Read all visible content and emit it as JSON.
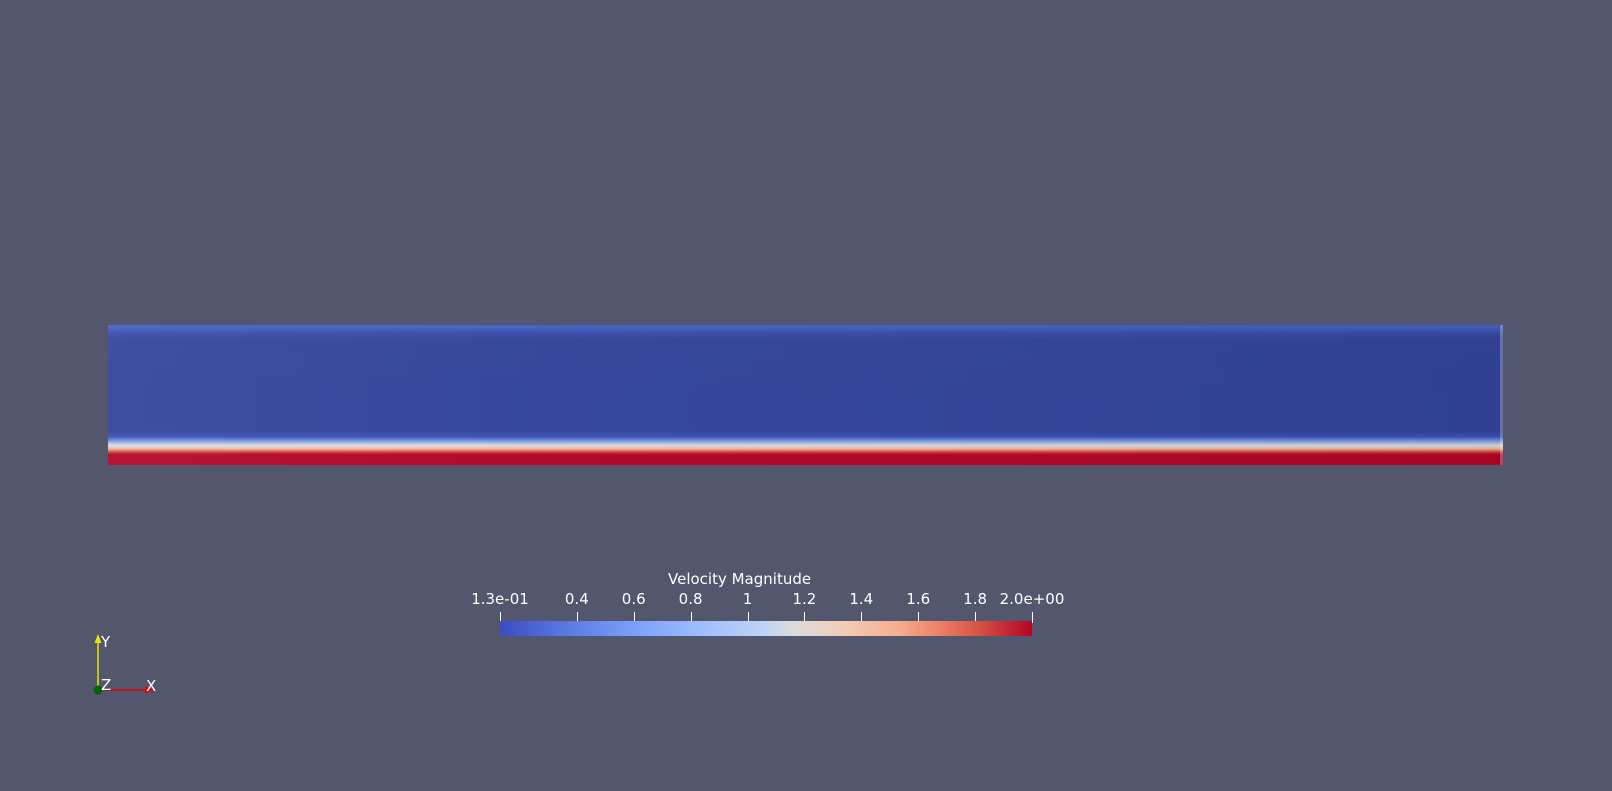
{
  "view": {
    "background": "#52576e"
  },
  "field": {
    "name": "Velocity Magnitude",
    "colormap": "cool-to-warm",
    "low_color": "#3b4cc0",
    "high_color": "#b40426"
  },
  "colorbar": {
    "title": "Velocity Magnitude",
    "range": [
      0.13,
      2.0
    ],
    "ticks": [
      {
        "label": "1.3e-01",
        "value": 0.13
      },
      {
        "label": "0.4",
        "value": 0.4
      },
      {
        "label": "0.6",
        "value": 0.6
      },
      {
        "label": "0.8",
        "value": 0.8
      },
      {
        "label": "1",
        "value": 1.0
      },
      {
        "label": "1.2",
        "value": 1.2
      },
      {
        "label": "1.4",
        "value": 1.4
      },
      {
        "label": "1.6",
        "value": 1.6
      },
      {
        "label": "1.8",
        "value": 1.8
      },
      {
        "label": "2.0e+00",
        "value": 2.0
      }
    ]
  },
  "orientation_axes": {
    "y_label": "Y",
    "z_label": "Z",
    "x_label": "X",
    "y_color": "#e6e600",
    "x_color": "#e60000",
    "z_color": "#006600"
  }
}
